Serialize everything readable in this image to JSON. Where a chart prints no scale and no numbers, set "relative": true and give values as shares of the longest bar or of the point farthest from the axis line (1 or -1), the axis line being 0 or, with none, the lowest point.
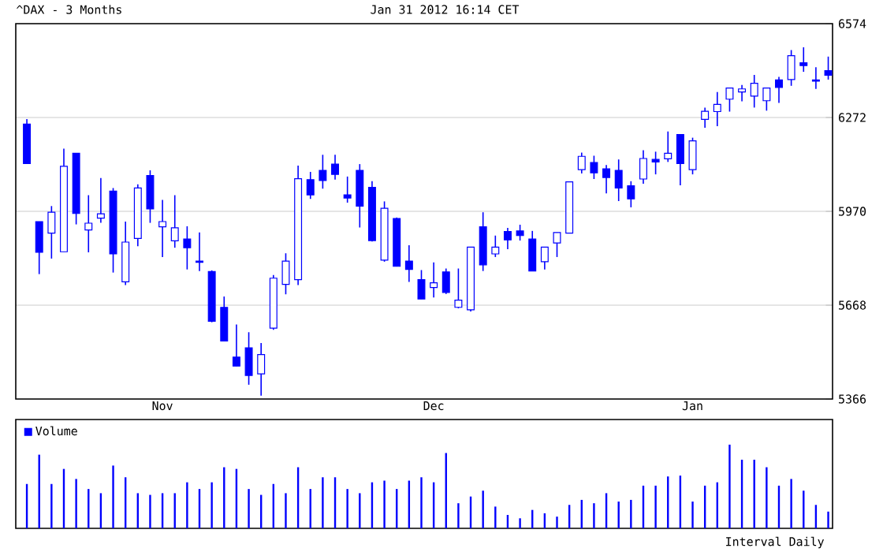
{
  "chart_data": [
    {
      "type": "candlestick",
      "title": "^DAX - 3 Months",
      "subtitle": "Jan 31 2012 16:14 CET",
      "color": "#0000ff",
      "categories": [
        null,
        null,
        null,
        null,
        null,
        null,
        null,
        null,
        null,
        null,
        null,
        "Nov",
        null,
        null,
        null,
        null,
        null,
        null,
        null,
        null,
        null,
        null,
        null,
        null,
        null,
        null,
        null,
        null,
        null,
        null,
        null,
        null,
        null,
        "Dec",
        null,
        null,
        null,
        null,
        null,
        null,
        null,
        null,
        null,
        null,
        null,
        null,
        null,
        null,
        null,
        null,
        null,
        null,
        null,
        null,
        "Jan",
        null,
        null,
        null,
        null,
        null,
        null,
        null,
        null,
        null,
        null,
        null
      ],
      "ohlc": [
        [
          6251,
          6267,
          6124,
          6124
        ],
        [
          5937,
          5937,
          5768,
          5838
        ],
        [
          5900,
          5987,
          5818,
          5967
        ],
        [
          5840,
          6172,
          5840,
          6115
        ],
        [
          6157,
          6157,
          5928,
          5963
        ],
        [
          5910,
          6022,
          5838,
          5932
        ],
        [
          5948,
          6077,
          5933,
          5962
        ],
        [
          6035,
          6045,
          5773,
          5833
        ],
        [
          5743,
          5937,
          5733,
          5871
        ],
        [
          5883,
          6057,
          5858,
          6045
        ],
        [
          6085,
          6102,
          5933,
          5978
        ],
        [
          5920,
          6007,
          5823,
          5937
        ],
        [
          5875,
          6022,
          5853,
          5917
        ],
        [
          5881,
          5922,
          5783,
          5853
        ],
        [
          5810,
          5902,
          5778,
          5806
        ],
        [
          5776,
          5780,
          5613,
          5616
        ],
        [
          5661,
          5696,
          5553,
          5553
        ],
        [
          5501,
          5606,
          5472,
          5472
        ],
        [
          5531,
          5581,
          5412,
          5442
        ],
        [
          5447,
          5546,
          5377,
          5509
        ],
        [
          5594,
          5765,
          5589,
          5755
        ],
        [
          5735,
          5835,
          5703,
          5810
        ],
        [
          5750,
          6117,
          5733,
          6075
        ],
        [
          6072,
          6097,
          6010,
          6023
        ],
        [
          6102,
          6152,
          6043,
          6069
        ],
        [
          6122,
          6152,
          6072,
          6089
        ],
        [
          6023,
          6082,
          5998,
          6013
        ],
        [
          6102,
          6122,
          5918,
          5987
        ],
        [
          6047,
          6067,
          5873,
          5876
        ],
        [
          5813,
          6002,
          5808,
          5980
        ],
        [
          5947,
          5950,
          5793,
          5793
        ],
        [
          5810,
          5861,
          5743,
          5783
        ],
        [
          5750,
          5781,
          5688,
          5688
        ],
        [
          5725,
          5806,
          5693,
          5740
        ],
        [
          5775,
          5786,
          5704,
          5709
        ],
        [
          5661,
          5786,
          5658,
          5684
        ],
        [
          5653,
          5855,
          5648,
          5855
        ],
        [
          5920,
          5967,
          5778,
          5798
        ],
        [
          5833,
          5892,
          5823,
          5855
        ],
        [
          5905,
          5917,
          5848,
          5878
        ],
        [
          5907,
          5927,
          5876,
          5892
        ],
        [
          5881,
          5907,
          5778,
          5778
        ],
        [
          5808,
          5855,
          5783,
          5855
        ],
        [
          5868,
          5902,
          5823,
          5902
        ],
        [
          5900,
          6065,
          5900,
          6065
        ],
        [
          6104,
          6159,
          6092,
          6147
        ],
        [
          6127,
          6149,
          6074,
          6094
        ],
        [
          6107,
          6119,
          6028,
          6079
        ],
        [
          6102,
          6137,
          6003,
          6045
        ],
        [
          6052,
          6067,
          5983,
          6010
        ],
        [
          6074,
          6167,
          6059,
          6140
        ],
        [
          6137,
          6162,
          6089,
          6129
        ],
        [
          6139,
          6227,
          6129,
          6157
        ],
        [
          6217,
          6217,
          6054,
          6124
        ],
        [
          6104,
          6207,
          6089,
          6197
        ],
        [
          6266,
          6304,
          6239,
          6292
        ],
        [
          6291,
          6354,
          6244,
          6314
        ],
        [
          6331,
          6367,
          6291,
          6367
        ],
        [
          6354,
          6377,
          6324,
          6364
        ],
        [
          6341,
          6409,
          6304,
          6382
        ],
        [
          6326,
          6367,
          6294,
          6367
        ],
        [
          6393,
          6403,
          6319,
          6369
        ],
        [
          6394,
          6489,
          6374,
          6471
        ],
        [
          6448,
          6498,
          6419,
          6439
        ],
        [
          6393,
          6434,
          6364,
          6389
        ],
        [
          6423,
          6468,
          6394,
          6408
        ]
      ],
      "ylim": [
        5366,
        6574
      ],
      "yticks": [
        5366,
        5668,
        5970,
        6272,
        6574
      ],
      "grid": "y"
    },
    {
      "type": "bar",
      "relative": true,
      "legend": "top left",
      "annotations": [
        "Interval Daily"
      ],
      "categories": [
        null,
        null,
        null,
        null,
        null,
        null,
        null,
        null,
        null,
        null,
        null,
        null,
        null,
        null,
        null,
        null,
        null,
        null,
        null,
        null,
        null,
        null,
        null,
        null,
        null,
        null,
        null,
        null,
        null,
        null,
        null,
        null,
        null,
        null,
        null,
        null,
        null,
        null,
        null,
        null,
        null,
        null,
        null,
        null,
        null,
        null,
        null,
        null,
        null,
        null,
        null,
        null,
        null,
        null,
        null,
        null,
        null,
        null,
        null,
        null,
        null,
        null,
        null,
        null,
        null,
        null
      ],
      "series": [
        {
          "name": "Volume",
          "color": "#0000ff",
          "values": [
            0.53,
            0.88,
            0.53,
            0.71,
            0.59,
            0.47,
            0.42,
            0.75,
            0.61,
            0.42,
            0.4,
            0.42,
            0.42,
            0.55,
            0.47,
            0.55,
            0.73,
            0.71,
            0.47,
            0.4,
            0.53,
            0.42,
            0.73,
            0.47,
            0.61,
            0.61,
            0.47,
            0.42,
            0.55,
            0.57,
            0.47,
            0.57,
            0.61,
            0.55,
            0.9,
            0.3,
            0.38,
            0.45,
            0.26,
            0.16,
            0.12,
            0.22,
            0.18,
            0.14,
            0.28,
            0.34,
            0.3,
            0.42,
            0.32,
            0.34,
            0.51,
            0.51,
            0.62,
            0.63,
            0.32,
            0.51,
            0.55,
            1,
            0.82,
            0.82,
            0.73,
            0.51,
            0.59,
            0.45,
            0.28,
            0.2
          ]
        }
      ]
    }
  ]
}
